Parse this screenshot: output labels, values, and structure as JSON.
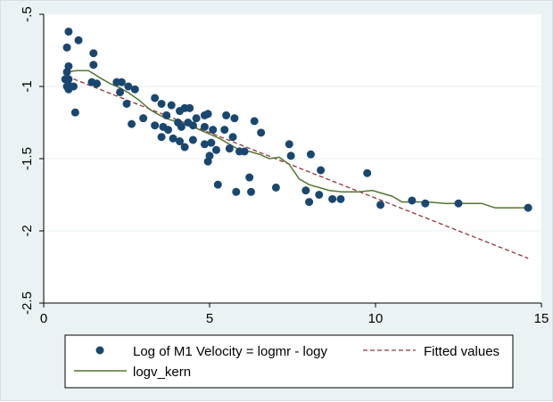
{
  "chart_data": {
    "type": "scatter",
    "title": "",
    "xlabel": "",
    "ylabel": "",
    "xlim": [
      0,
      15
    ],
    "ylim": [
      -2.5,
      -0.5
    ],
    "x_ticks": [
      "0",
      "5",
      "10",
      "15"
    ],
    "y_ticks": [
      "-.5",
      "-1",
      "-1.5",
      "-2",
      "-2.5"
    ],
    "x_tick_values": [
      0,
      5,
      10,
      15
    ],
    "y_tick_values": [
      -0.5,
      -1,
      -1.5,
      -2,
      -2.5
    ],
    "grid": true,
    "legend": {
      "position": "bottom",
      "entries": [
        "Log of M1 Velocity = logmr - logy",
        "Fitted values",
        "logv_kern"
      ]
    },
    "colors": {
      "scatter": "#1a476f",
      "fitted": "#90353b",
      "kernel": "#55752f",
      "plot_bg": "#ffffff",
      "outer_bg": "#eaf2f3",
      "grid": "#eaf2f3"
    },
    "series": [
      {
        "name": "Log of M1 Velocity = logmr - logy",
        "type": "scatter",
        "points": [
          [
            0.75,
            -0.62
          ],
          [
            0.7,
            -0.73
          ],
          [
            1.05,
            -0.68
          ],
          [
            1.5,
            -0.77
          ],
          [
            1.5,
            -0.85
          ],
          [
            0.75,
            -0.86
          ],
          [
            0.7,
            -0.9
          ],
          [
            0.75,
            -0.95
          ],
          [
            0.65,
            -0.95
          ],
          [
            0.8,
            -1.0
          ],
          [
            0.7,
            -1.0
          ],
          [
            0.9,
            -1.0
          ],
          [
            0.75,
            -1.02
          ],
          [
            1.45,
            -0.97
          ],
          [
            1.6,
            -0.98
          ],
          [
            0.95,
            -1.18
          ],
          [
            2.2,
            -0.97
          ],
          [
            2.35,
            -0.97
          ],
          [
            2.55,
            -1.0
          ],
          [
            2.75,
            -1.02
          ],
          [
            2.3,
            -1.04
          ],
          [
            2.5,
            -1.12
          ],
          [
            2.65,
            -1.26
          ],
          [
            3.0,
            -1.22
          ],
          [
            3.35,
            -1.08
          ],
          [
            3.55,
            -1.12
          ],
          [
            3.85,
            -1.13
          ],
          [
            3.7,
            -1.2
          ],
          [
            4.1,
            -1.17
          ],
          [
            4.25,
            -1.15
          ],
          [
            4.4,
            -1.15
          ],
          [
            3.35,
            -1.27
          ],
          [
            3.6,
            -1.28
          ],
          [
            4.05,
            -1.25
          ],
          [
            4.15,
            -1.28
          ],
          [
            4.35,
            -1.25
          ],
          [
            4.5,
            -1.27
          ],
          [
            4.6,
            -1.22
          ],
          [
            4.85,
            -1.2
          ],
          [
            4.95,
            -1.19
          ],
          [
            3.75,
            -1.3
          ],
          [
            3.55,
            -1.35
          ],
          [
            3.9,
            -1.36
          ],
          [
            4.1,
            -1.38
          ],
          [
            4.25,
            -1.42
          ],
          [
            4.5,
            -1.37
          ],
          [
            4.85,
            -1.28
          ],
          [
            5.1,
            -1.3
          ],
          [
            5.05,
            -1.39
          ],
          [
            4.85,
            -1.4
          ],
          [
            5.2,
            -1.44
          ],
          [
            4.95,
            -1.52
          ],
          [
            5.0,
            -1.48
          ],
          [
            5.5,
            -1.2
          ],
          [
            5.75,
            -1.22
          ],
          [
            5.45,
            -1.3
          ],
          [
            5.7,
            -1.35
          ],
          [
            5.6,
            -1.43
          ],
          [
            5.9,
            -1.45
          ],
          [
            6.05,
            -1.45
          ],
          [
            6.35,
            -1.24
          ],
          [
            6.55,
            -1.32
          ],
          [
            5.25,
            -1.68
          ],
          [
            5.8,
            -1.73
          ],
          [
            6.2,
            -1.63
          ],
          [
            6.25,
            -1.73
          ],
          [
            7.0,
            -1.7
          ],
          [
            7.4,
            -1.4
          ],
          [
            7.45,
            -1.48
          ],
          [
            7.9,
            -1.72
          ],
          [
            8.0,
            -1.8
          ],
          [
            8.05,
            -1.47
          ],
          [
            8.35,
            -1.58
          ],
          [
            8.3,
            -1.75
          ],
          [
            8.7,
            -1.78
          ],
          [
            8.95,
            -1.78
          ],
          [
            9.75,
            -1.6
          ],
          [
            10.15,
            -1.82
          ],
          [
            11.1,
            -1.79
          ],
          [
            11.5,
            -1.81
          ],
          [
            12.5,
            -1.81
          ],
          [
            14.6,
            -1.84
          ]
        ]
      },
      {
        "name": "Fitted values",
        "type": "line",
        "points": [
          [
            0.7,
            -0.93
          ],
          [
            14.6,
            -2.19
          ]
        ]
      },
      {
        "name": "logv_kern",
        "type": "line",
        "points": [
          [
            0.65,
            -0.9
          ],
          [
            1.0,
            -0.89
          ],
          [
            1.35,
            -0.89
          ],
          [
            1.7,
            -0.94
          ],
          [
            2.0,
            -0.98
          ],
          [
            2.3,
            -1.01
          ],
          [
            2.6,
            -1.05
          ],
          [
            2.9,
            -1.1
          ],
          [
            3.2,
            -1.16
          ],
          [
            3.5,
            -1.2
          ],
          [
            3.8,
            -1.23
          ],
          [
            4.1,
            -1.25
          ],
          [
            4.4,
            -1.27
          ],
          [
            4.7,
            -1.3
          ],
          [
            5.0,
            -1.33
          ],
          [
            5.3,
            -1.36
          ],
          [
            5.6,
            -1.4
          ],
          [
            5.9,
            -1.44
          ],
          [
            6.2,
            -1.45
          ],
          [
            6.5,
            -1.47
          ],
          [
            6.8,
            -1.5
          ],
          [
            7.1,
            -1.49
          ],
          [
            7.4,
            -1.54
          ],
          [
            7.7,
            -1.64
          ],
          [
            8.0,
            -1.68
          ],
          [
            8.3,
            -1.7
          ],
          [
            8.6,
            -1.72
          ],
          [
            9.0,
            -1.73
          ],
          [
            9.5,
            -1.73
          ],
          [
            9.9,
            -1.72
          ],
          [
            10.2,
            -1.74
          ],
          [
            10.5,
            -1.76
          ],
          [
            10.8,
            -1.8
          ],
          [
            11.1,
            -1.8
          ],
          [
            11.6,
            -1.8
          ],
          [
            12.1,
            -1.81
          ],
          [
            12.6,
            -1.81
          ],
          [
            13.2,
            -1.81
          ],
          [
            13.6,
            -1.84
          ],
          [
            14.6,
            -1.84
          ]
        ]
      }
    ]
  }
}
